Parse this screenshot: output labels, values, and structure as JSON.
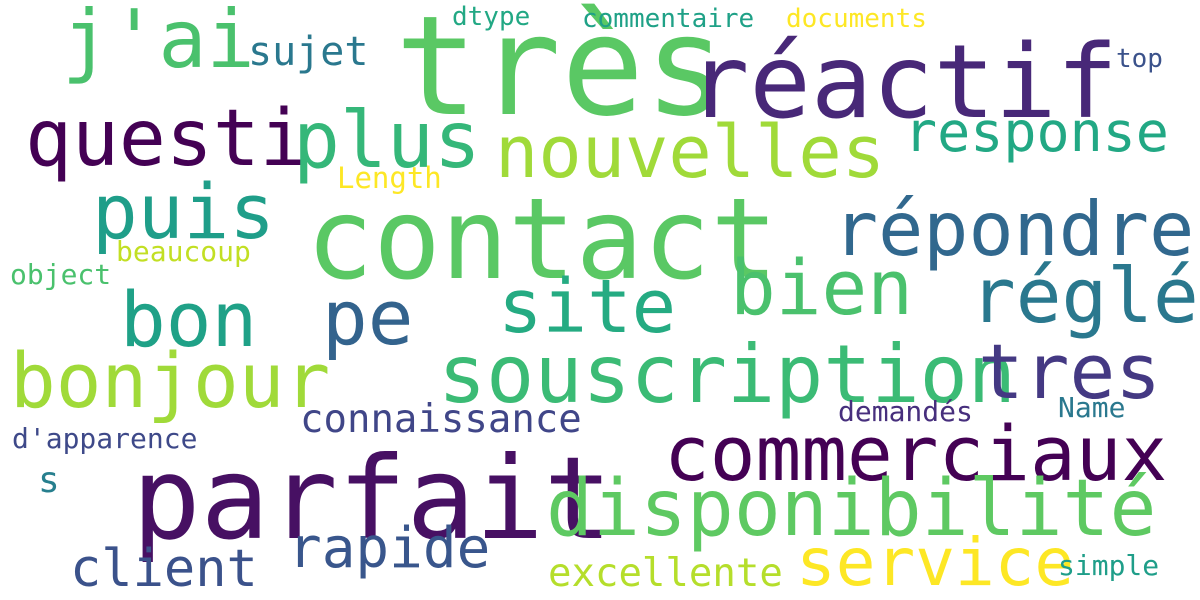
{
  "background_color": "#ffffff",
  "words": [
    {
      "text": "très",
      "color": "#5ac864"
    },
    {
      "text": "réactif",
      "color": "#482878"
    },
    {
      "text": "j'ai",
      "color": "#4ac16d"
    },
    {
      "text": "sujet",
      "color": "#2a788e"
    },
    {
      "text": "dtype",
      "color": "#22a884"
    },
    {
      "text": "commentaire",
      "color": "#1fa187"
    },
    {
      "text": "documents",
      "color": "#fde725"
    },
    {
      "text": "top",
      "color": "#3b528b"
    },
    {
      "text": "questi",
      "color": "#440154"
    },
    {
      "text": "plus",
      "color": "#35b779"
    },
    {
      "text": "nouvelles",
      "color": "#a0da39"
    },
    {
      "text": "response",
      "color": "#22a884"
    },
    {
      "text": "Length",
      "color": "#fde725"
    },
    {
      "text": "puis",
      "color": "#1f9e89"
    },
    {
      "text": "contact",
      "color": "#5ac864"
    },
    {
      "text": "répondre",
      "color": "#31688e"
    },
    {
      "text": "beaucoup",
      "color": "#c2df23"
    },
    {
      "text": "object",
      "color": "#4ac16d"
    },
    {
      "text": "bon",
      "color": "#1fa187"
    },
    {
      "text": "pe",
      "color": "#33638d"
    },
    {
      "text": "site",
      "color": "#25ab82"
    },
    {
      "text": "bien",
      "color": "#4ac16d"
    },
    {
      "text": "réglé",
      "color": "#2a788e"
    },
    {
      "text": "bonjour",
      "color": "#a0da39"
    },
    {
      "text": "souscription",
      "color": "#3bbb75"
    },
    {
      "text": "tres",
      "color": "#443983"
    },
    {
      "text": "connaissance",
      "color": "#404688"
    },
    {
      "text": "demandés",
      "color": "#472f7d"
    },
    {
      "text": "Name",
      "color": "#2a788e"
    },
    {
      "text": "d'apparence",
      "color": "#3e4989"
    },
    {
      "text": "commerciaux",
      "color": "#440154"
    },
    {
      "text": "s",
      "color": "#277f8e"
    },
    {
      "text": "parfait",
      "color": "#471063"
    },
    {
      "text": "disponibilité",
      "color": "#5ec962"
    },
    {
      "text": "rapide",
      "color": "#39568c"
    },
    {
      "text": "client",
      "color": "#3b528b"
    },
    {
      "text": "service",
      "color": "#fde725"
    },
    {
      "text": "excellente",
      "color": "#b5de2b"
    },
    {
      "text": "simple",
      "color": "#1f9e89"
    }
  ]
}
